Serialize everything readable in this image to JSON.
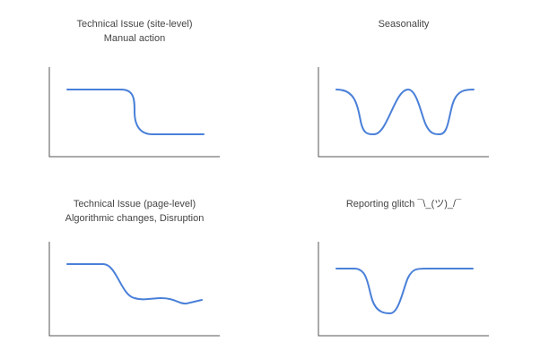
{
  "panels": [
    {
      "title": [
        "Technical Issue (site-level)",
        "Manual action"
      ]
    },
    {
      "title": [
        "Seasonality"
      ]
    },
    {
      "title": [
        "Technical Issue (page-level)",
        "Algorithmic changes, Disruption"
      ]
    },
    {
      "title": [
        "Reporting glitch ¯\\_(ツ)_/¯"
      ]
    }
  ]
}
